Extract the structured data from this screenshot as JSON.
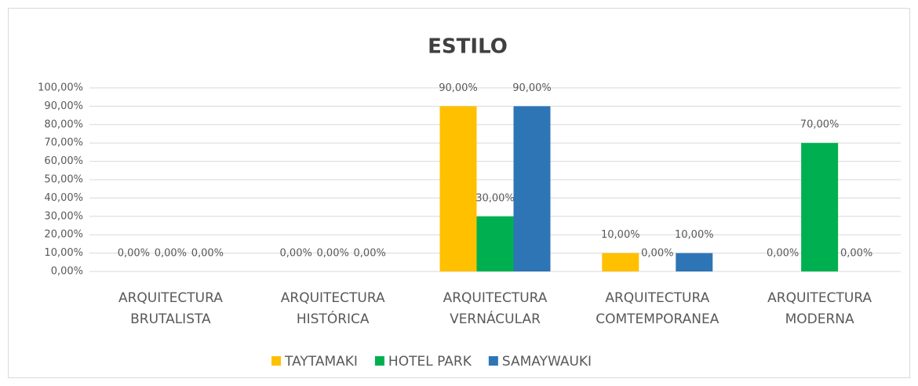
{
  "chart_data": {
    "type": "bar",
    "title": "ESTILO",
    "categories": [
      "ARQUITECTURA BRUTALISTA",
      "ARQUITECTURA HISTÓRICA",
      "ARQUITECTURA VERNÁCULAR",
      "ARQUITECTURA COMTEMPORANEA",
      "ARQUITECTURA MODERNA"
    ],
    "series": [
      {
        "name": "TAYTAMAKI",
        "color": "#ffc000",
        "values": [
          0,
          0,
          90,
          10,
          0
        ],
        "value_labels": [
          "0,00%",
          "0,00%",
          "90,00%",
          "10,00%",
          "0,00%"
        ]
      },
      {
        "name": "HOTEL PARK",
        "color": "#00b050",
        "values": [
          0,
          0,
          30,
          0,
          70
        ],
        "value_labels": [
          "0,00%",
          "0,00%",
          "30,00%",
          "0,00%",
          "70,00%"
        ]
      },
      {
        "name": "SAMAYWAUKI",
        "color": "#2e75b6",
        "values": [
          0,
          0,
          90,
          10,
          0
        ],
        "value_labels": [
          "0,00%",
          "0,00%",
          "90,00%",
          "10,00%",
          "0,00%"
        ]
      }
    ],
    "ylim": [
      0,
      100
    ],
    "yticks": [
      {
        "value": 0,
        "label": "0,00%"
      },
      {
        "value": 10,
        "label": "10,00%"
      },
      {
        "value": 20,
        "label": "20,00%"
      },
      {
        "value": 30,
        "label": "30,00%"
      },
      {
        "value": 40,
        "label": "40,00%"
      },
      {
        "value": 50,
        "label": "50,00%"
      },
      {
        "value": 60,
        "label": "60,00%"
      },
      {
        "value": 70,
        "label": "70,00%"
      },
      {
        "value": 80,
        "label": "80,00%"
      },
      {
        "value": 90,
        "label": "90,00%"
      },
      {
        "value": 100,
        "label": "100,00%"
      }
    ],
    "grid": true,
    "legend": "bottom"
  }
}
